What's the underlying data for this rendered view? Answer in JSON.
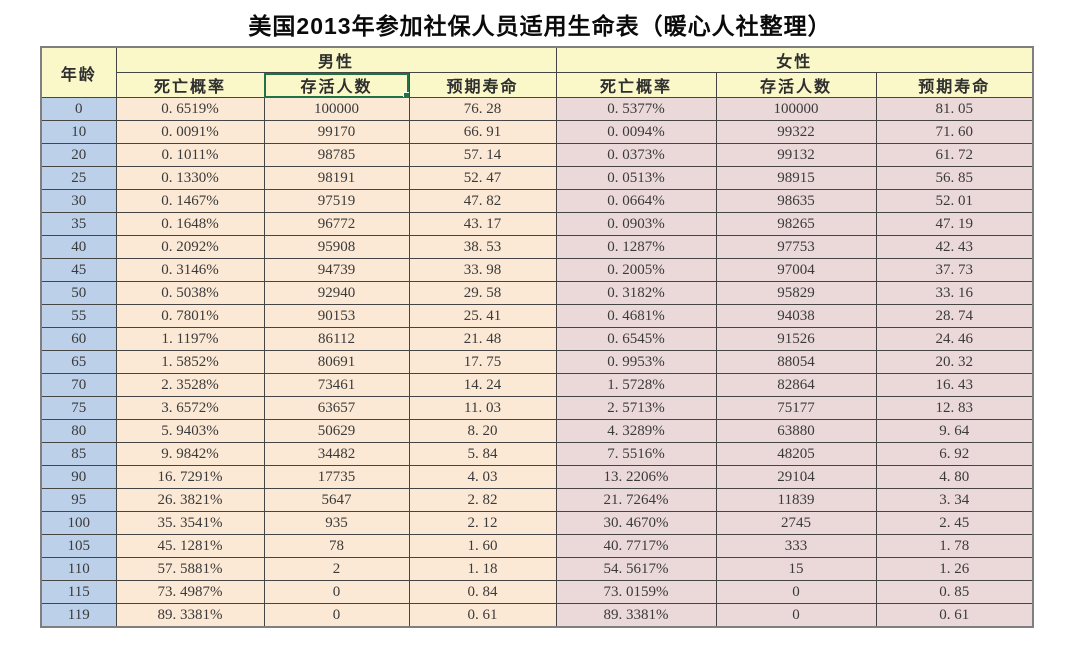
{
  "title": "美国2013年参加社保人员适用生命表（暖心人社整理）",
  "table": {
    "age_header": "年龄",
    "male_group": {
      "label": "男性",
      "columns": [
        "死亡概率",
        "存活人数",
        "预期寿命"
      ]
    },
    "female_group": {
      "label": "女性",
      "columns": [
        "死亡概率",
        "存活人数",
        "预期寿命"
      ]
    },
    "selected_cell": "male-survivors-header",
    "rows": [
      {
        "age": "0",
        "male": [
          "0. 6519%",
          "100000",
          "76. 28"
        ],
        "female": [
          "0. 5377%",
          "100000",
          "81. 05"
        ]
      },
      {
        "age": "10",
        "male": [
          "0. 0091%",
          "99170",
          "66. 91"
        ],
        "female": [
          "0. 0094%",
          "99322",
          "71. 60"
        ]
      },
      {
        "age": "20",
        "male": [
          "0. 1011%",
          "98785",
          "57. 14"
        ],
        "female": [
          "0. 0373%",
          "99132",
          "61. 72"
        ]
      },
      {
        "age": "25",
        "male": [
          "0. 1330%",
          "98191",
          "52. 47"
        ],
        "female": [
          "0. 0513%",
          "98915",
          "56. 85"
        ]
      },
      {
        "age": "30",
        "male": [
          "0. 1467%",
          "97519",
          "47. 82"
        ],
        "female": [
          "0. 0664%",
          "98635",
          "52. 01"
        ]
      },
      {
        "age": "35",
        "male": [
          "0. 1648%",
          "96772",
          "43. 17"
        ],
        "female": [
          "0. 0903%",
          "98265",
          "47. 19"
        ]
      },
      {
        "age": "40",
        "male": [
          "0. 2092%",
          "95908",
          "38. 53"
        ],
        "female": [
          "0. 1287%",
          "97753",
          "42. 43"
        ]
      },
      {
        "age": "45",
        "male": [
          "0. 3146%",
          "94739",
          "33. 98"
        ],
        "female": [
          "0. 2005%",
          "97004",
          "37. 73"
        ]
      },
      {
        "age": "50",
        "male": [
          "0. 5038%",
          "92940",
          "29. 58"
        ],
        "female": [
          "0. 3182%",
          "95829",
          "33. 16"
        ]
      },
      {
        "age": "55",
        "male": [
          "0. 7801%",
          "90153",
          "25. 41"
        ],
        "female": [
          "0. 4681%",
          "94038",
          "28. 74"
        ]
      },
      {
        "age": "60",
        "male": [
          "1. 1197%",
          "86112",
          "21. 48"
        ],
        "female": [
          "0. 6545%",
          "91526",
          "24. 46"
        ]
      },
      {
        "age": "65",
        "male": [
          "1. 5852%",
          "80691",
          "17. 75"
        ],
        "female": [
          "0. 9953%",
          "88054",
          "20. 32"
        ]
      },
      {
        "age": "70",
        "male": [
          "2. 3528%",
          "73461",
          "14. 24"
        ],
        "female": [
          "1. 5728%",
          "82864",
          "16. 43"
        ]
      },
      {
        "age": "75",
        "male": [
          "3. 6572%",
          "63657",
          "11. 03"
        ],
        "female": [
          "2. 5713%",
          "75177",
          "12. 83"
        ]
      },
      {
        "age": "80",
        "male": [
          "5. 9403%",
          "50629",
          "8. 20"
        ],
        "female": [
          "4. 3289%",
          "63880",
          "9. 64"
        ]
      },
      {
        "age": "85",
        "male": [
          "9. 9842%",
          "34482",
          "5. 84"
        ],
        "female": [
          "7. 5516%",
          "48205",
          "6. 92"
        ]
      },
      {
        "age": "90",
        "male": [
          "16. 7291%",
          "17735",
          "4. 03"
        ],
        "female": [
          "13. 2206%",
          "29104",
          "4. 80"
        ]
      },
      {
        "age": "95",
        "male": [
          "26. 3821%",
          "5647",
          "2. 82"
        ],
        "female": [
          "21. 7264%",
          "11839",
          "3. 34"
        ]
      },
      {
        "age": "100",
        "male": [
          "35. 3541%",
          "935",
          "2. 12"
        ],
        "female": [
          "30. 4670%",
          "2745",
          "2. 45"
        ]
      },
      {
        "age": "105",
        "male": [
          "45. 1281%",
          "78",
          "1. 60"
        ],
        "female": [
          "40. 7717%",
          "333",
          "1. 78"
        ]
      },
      {
        "age": "110",
        "male": [
          "57. 5881%",
          "2",
          "1. 18"
        ],
        "female": [
          "54. 5617%",
          "15",
          "1. 26"
        ]
      },
      {
        "age": "115",
        "male": [
          "73. 4987%",
          "0",
          "0. 84"
        ],
        "female": [
          "73. 0159%",
          "0",
          "0. 85"
        ]
      },
      {
        "age": "119",
        "male": [
          "89. 3381%",
          "0",
          "0. 61"
        ],
        "female": [
          "89. 3381%",
          "0",
          "0. 61"
        ]
      }
    ]
  },
  "colors": {
    "header_bg": "#FAF8C9",
    "age_col_bg": "#BDD0E9",
    "male_bg": "#FBE9D5",
    "female_bg": "#EBD9DA",
    "selection_border": "#217346",
    "grid_line": "#454545",
    "outer_border": "#7F7F7F",
    "text": "#3A3A3A"
  },
  "chart_data": {
    "type": "table",
    "title": "美国2013年参加社保人员适用生命表（暖心人社整理）",
    "columns": [
      "年龄",
      "男性-死亡概率",
      "男性-存活人数",
      "男性-预期寿命",
      "女性-死亡概率",
      "女性-存活人数",
      "女性-预期寿命"
    ],
    "x": [
      0,
      10,
      20,
      25,
      30,
      35,
      40,
      45,
      50,
      55,
      60,
      65,
      70,
      75,
      80,
      85,
      90,
      95,
      100,
      105,
      110,
      115,
      119
    ],
    "xlabel": "年龄",
    "series": [
      {
        "name": "男性 死亡概率(%)",
        "values": [
          0.6519,
          0.0091,
          0.1011,
          0.133,
          0.1467,
          0.1648,
          0.2092,
          0.3146,
          0.5038,
          0.7801,
          1.1197,
          1.5852,
          2.3528,
          3.6572,
          5.9403,
          9.9842,
          16.7291,
          26.3821,
          35.3541,
          45.1281,
          57.5881,
          73.4987,
          89.3381
        ]
      },
      {
        "name": "男性 存活人数",
        "values": [
          100000,
          99170,
          98785,
          98191,
          97519,
          96772,
          95908,
          94739,
          92940,
          90153,
          86112,
          80691,
          73461,
          63657,
          50629,
          34482,
          17735,
          5647,
          935,
          78,
          2,
          0,
          0
        ]
      },
      {
        "name": "男性 预期寿命",
        "values": [
          76.28,
          66.91,
          57.14,
          52.47,
          47.82,
          43.17,
          38.53,
          33.98,
          29.58,
          25.41,
          21.48,
          17.75,
          14.24,
          11.03,
          8.2,
          5.84,
          4.03,
          2.82,
          2.12,
          1.6,
          1.18,
          0.84,
          0.61
        ]
      },
      {
        "name": "女性 死亡概率(%)",
        "values": [
          0.5377,
          0.0094,
          0.0373,
          0.0513,
          0.0664,
          0.0903,
          0.1287,
          0.2005,
          0.3182,
          0.4681,
          0.6545,
          0.9953,
          1.5728,
          2.5713,
          4.3289,
          7.5516,
          13.2206,
          21.7264,
          30.467,
          40.7717,
          54.5617,
          73.0159,
          89.3381
        ]
      },
      {
        "name": "女性 存活人数",
        "values": [
          100000,
          99322,
          99132,
          98915,
          98635,
          98265,
          97753,
          97004,
          95829,
          94038,
          91526,
          88054,
          82864,
          75177,
          63880,
          48205,
          29104,
          11839,
          2745,
          333,
          15,
          0,
          0
        ]
      },
      {
        "name": "女性 预期寿命",
        "values": [
          81.05,
          71.6,
          61.72,
          56.85,
          52.01,
          47.19,
          42.43,
          37.73,
          33.16,
          28.74,
          24.46,
          20.32,
          16.43,
          12.83,
          9.64,
          6.92,
          4.8,
          3.34,
          2.45,
          1.78,
          1.26,
          0.85,
          0.61
        ]
      }
    ]
  }
}
